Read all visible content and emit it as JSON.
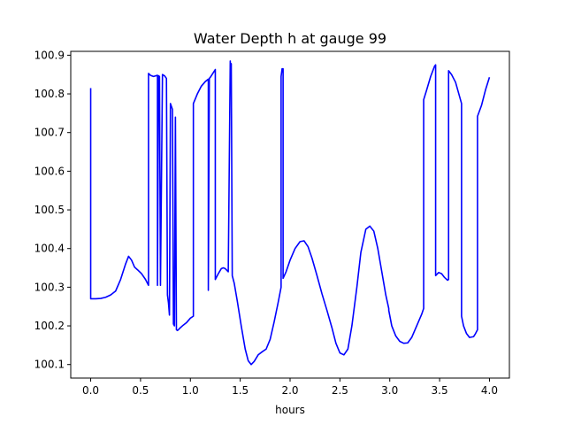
{
  "chart_data": {
    "type": "line",
    "title": "Water Depth h at gauge 99",
    "xlabel": "hours",
    "ylabel": "",
    "xlim": [
      -0.2,
      4.2
    ],
    "ylim": [
      100.065,
      100.91
    ],
    "xticks": [
      0.0,
      0.5,
      1.0,
      1.5,
      2.0,
      2.5,
      3.0,
      3.5,
      4.0
    ],
    "xtick_labels": [
      "0.0",
      "0.5",
      "1.0",
      "1.5",
      "2.0",
      "2.5",
      "3.0",
      "3.5",
      "4.0"
    ],
    "yticks": [
      100.1,
      100.2,
      100.3,
      100.4,
      100.5,
      100.6,
      100.7,
      100.8,
      100.9
    ],
    "ytick_labels": [
      "100.1",
      "100.2",
      "100.3",
      "100.4",
      "100.5",
      "100.6",
      "100.7",
      "100.8",
      "100.9"
    ],
    "grid": false,
    "color": "#0000ff",
    "series": [
      {
        "x": [
          0.0,
          0.0,
          0.05,
          0.1,
          0.15,
          0.2,
          0.25,
          0.3,
          0.35,
          0.38,
          0.41,
          0.44,
          0.47,
          0.51,
          0.55,
          0.58,
          0.58,
          0.6,
          0.63,
          0.67,
          0.67,
          0.68,
          0.69,
          0.7,
          0.72,
          0.72,
          0.74,
          0.76,
          0.77,
          0.78,
          0.79,
          0.8,
          0.8,
          0.82,
          0.83,
          0.84,
          0.85,
          0.85,
          0.86,
          0.87,
          0.88,
          0.89,
          0.92,
          0.96,
          1.0,
          1.03,
          1.03,
          1.07,
          1.11,
          1.15,
          1.18,
          1.18,
          1.19,
          1.2,
          1.23,
          1.25,
          1.25,
          1.28,
          1.31,
          1.33,
          1.35,
          1.38,
          1.4,
          1.4,
          1.41,
          1.42,
          1.42,
          1.44,
          1.47,
          1.51,
          1.55,
          1.58,
          1.61,
          1.64,
          1.68,
          1.72,
          1.76,
          1.8,
          1.84,
          1.88,
          1.91,
          1.91,
          1.92,
          1.93,
          1.93,
          1.96,
          2.0,
          2.05,
          2.1,
          2.14,
          2.18,
          2.22,
          2.27,
          2.32,
          2.37,
          2.42,
          2.46,
          2.5,
          2.54,
          2.58,
          2.62,
          2.67,
          2.71,
          2.76,
          2.8,
          2.84,
          2.88,
          2.92,
          2.96,
          2.99,
          2.99,
          3.02,
          3.06,
          3.1,
          3.14,
          3.18,
          3.22,
          3.27,
          3.32,
          3.34,
          3.34,
          3.37,
          3.41,
          3.45,
          3.46,
          3.46,
          3.49,
          3.52,
          3.55,
          3.58,
          3.59,
          3.59,
          3.62,
          3.66,
          3.72,
          3.72,
          3.74,
          3.77,
          3.8,
          3.84,
          3.86,
          3.88,
          3.88,
          3.92,
          3.96,
          4.0
        ],
        "y": [
          100.815,
          100.27,
          100.27,
          100.271,
          100.274,
          100.28,
          100.29,
          100.32,
          100.36,
          100.38,
          100.37,
          100.352,
          100.345,
          100.335,
          100.32,
          100.305,
          100.853,
          100.848,
          100.845,
          100.848,
          100.305,
          100.847,
          100.845,
          100.305,
          100.85,
          100.85,
          100.847,
          100.84,
          100.28,
          100.26,
          100.228,
          100.775,
          100.775,
          100.76,
          100.205,
          100.2,
          100.74,
          100.74,
          100.19,
          100.188,
          100.19,
          100.193,
          100.2,
          100.208,
          100.22,
          100.225,
          100.775,
          100.8,
          100.82,
          100.832,
          100.838,
          100.292,
          100.84,
          100.843,
          100.855,
          100.863,
          100.32,
          100.335,
          100.348,
          100.35,
          100.348,
          100.34,
          100.885,
          100.88,
          100.878,
          100.33,
          100.33,
          100.31,
          100.265,
          100.2,
          100.14,
          100.11,
          100.1,
          100.108,
          100.125,
          100.133,
          100.14,
          100.165,
          100.21,
          100.26,
          100.3,
          100.845,
          100.865,
          100.865,
          100.323,
          100.34,
          100.37,
          100.4,
          100.418,
          100.42,
          100.405,
          100.375,
          100.33,
          100.283,
          100.24,
          100.195,
          100.155,
          100.13,
          100.125,
          100.14,
          100.2,
          100.3,
          100.39,
          100.45,
          100.458,
          100.445,
          100.4,
          100.34,
          100.28,
          100.245,
          100.24,
          100.2,
          100.174,
          100.16,
          100.155,
          100.156,
          100.17,
          100.2,
          100.23,
          100.245,
          100.785,
          100.81,
          100.845,
          100.872,
          100.875,
          100.33,
          100.338,
          100.335,
          100.325,
          100.318,
          100.32,
          100.86,
          100.85,
          100.83,
          100.775,
          100.225,
          100.2,
          100.18,
          100.17,
          100.172,
          100.18,
          100.19,
          100.742,
          100.77,
          100.81,
          100.843
        ]
      }
    ]
  }
}
